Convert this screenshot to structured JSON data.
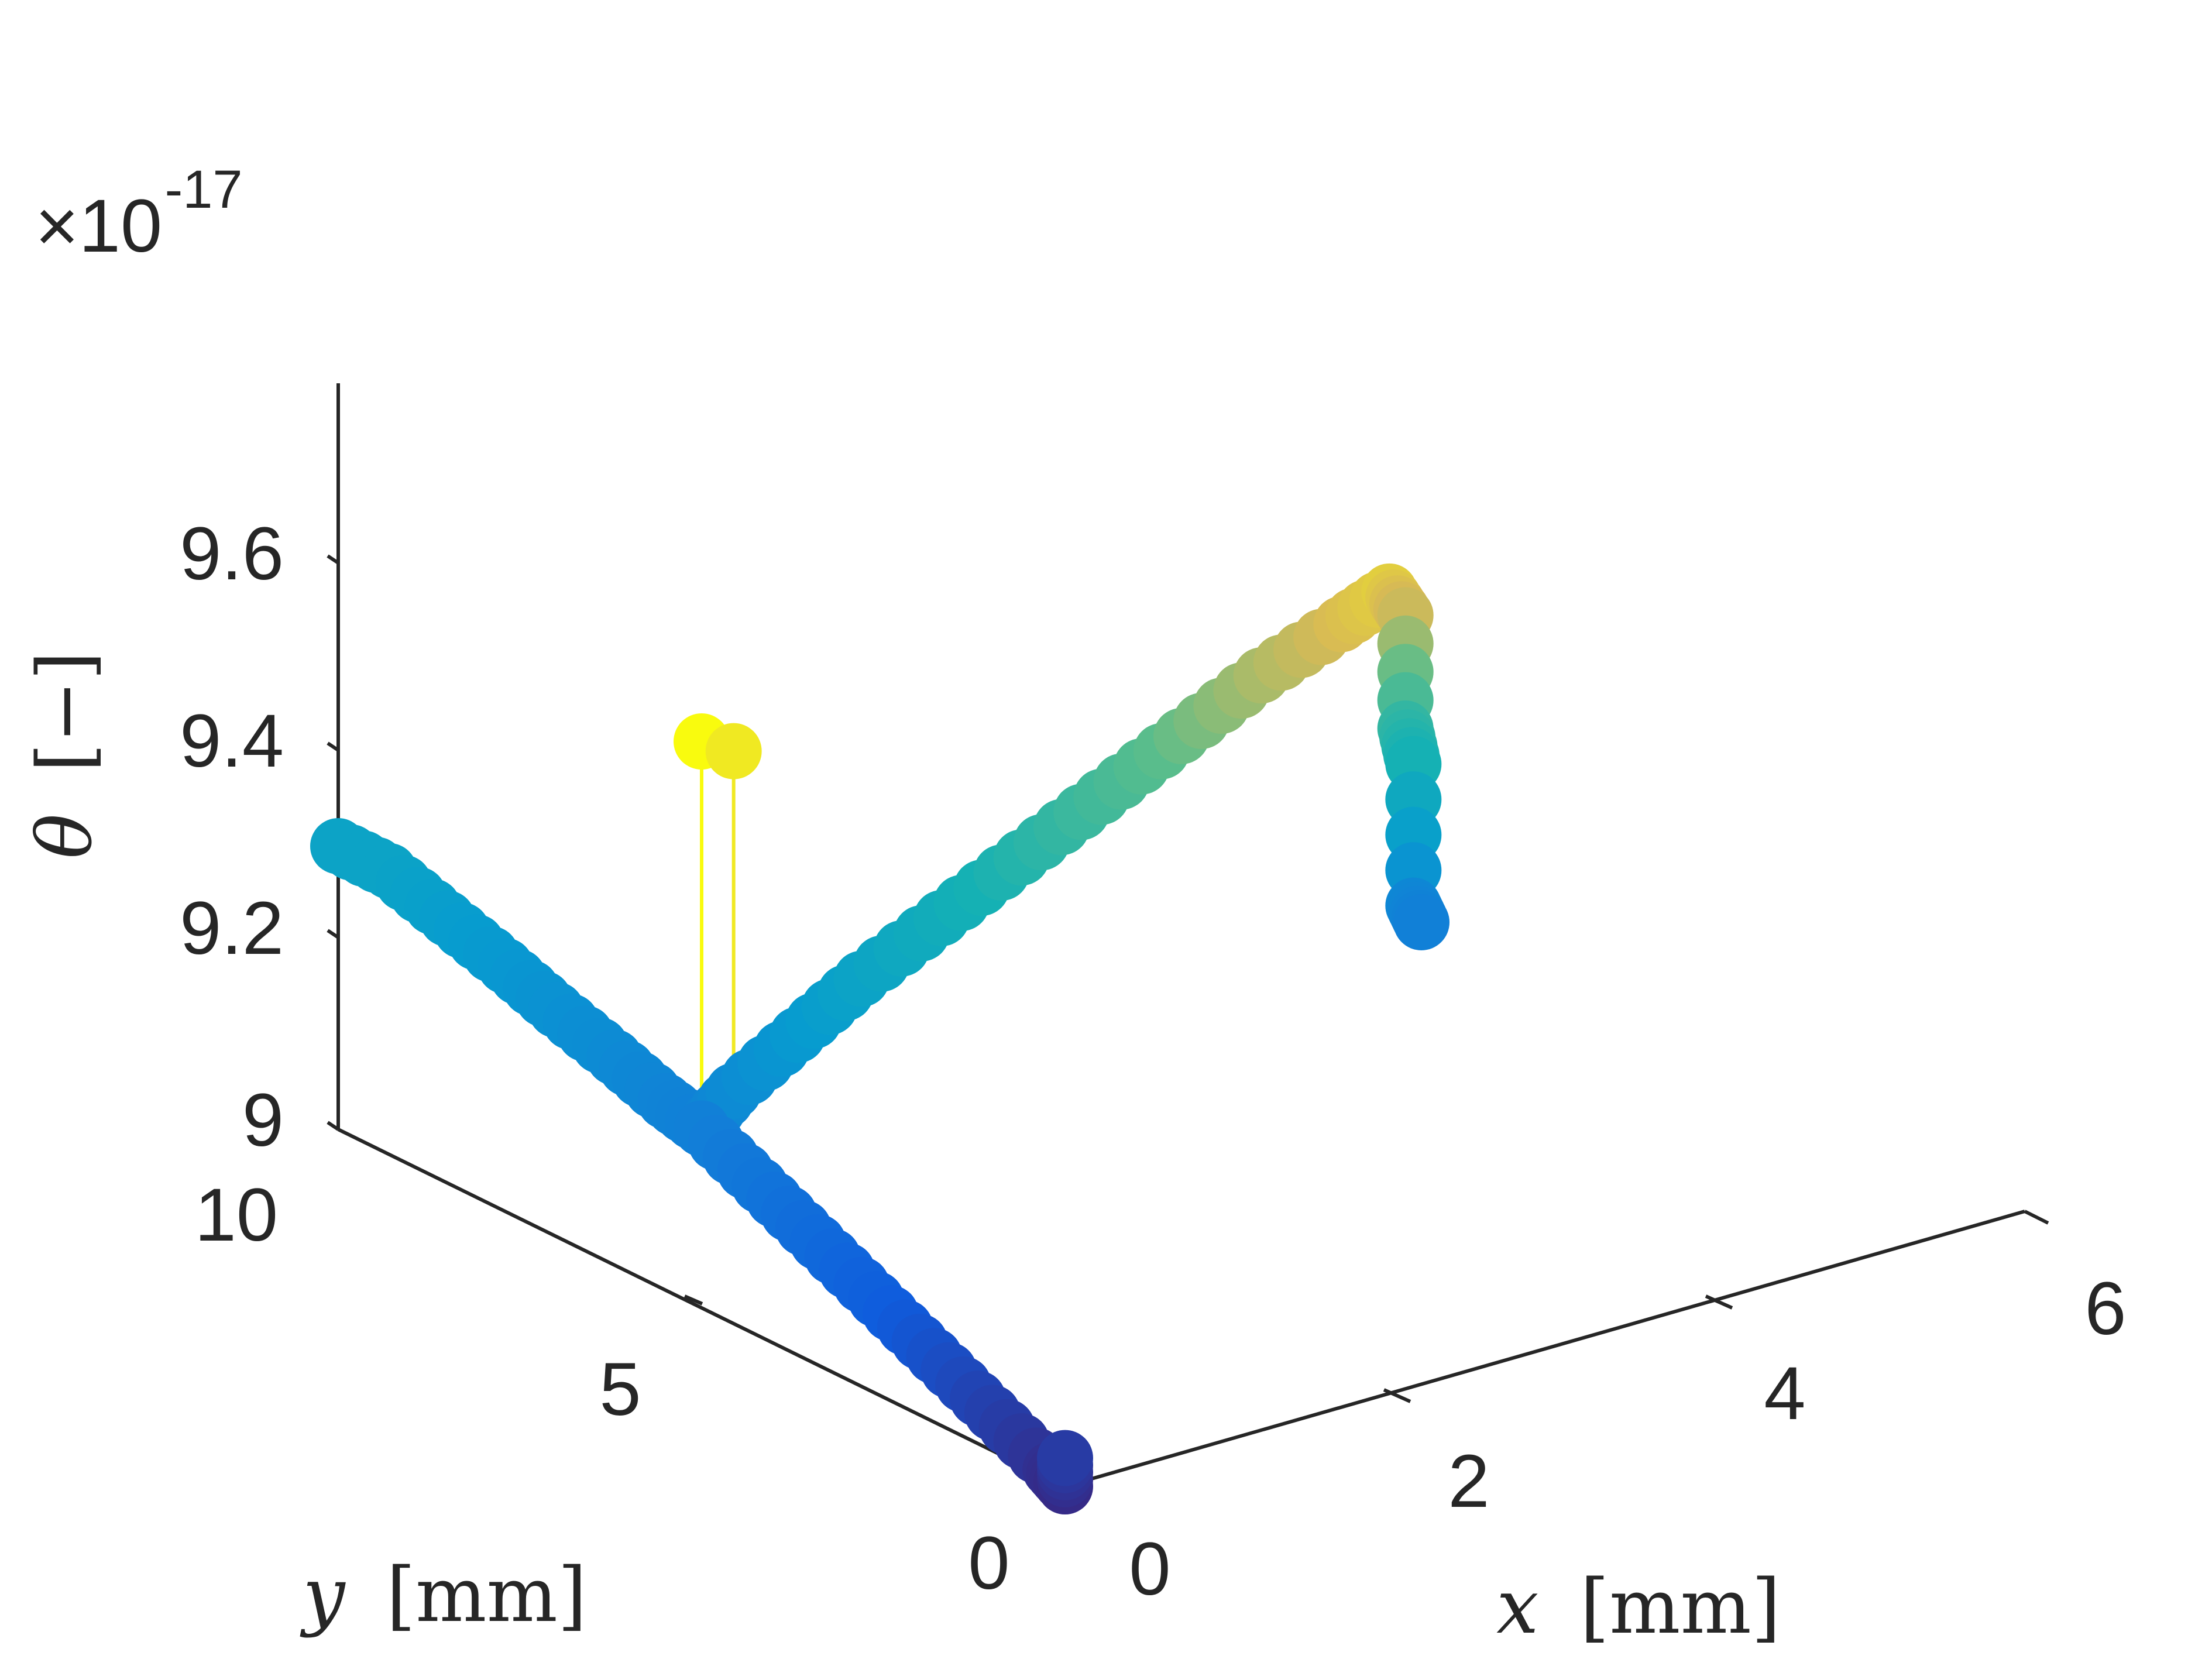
{
  "chart_data": {
    "type": "scatter",
    "view": "3d",
    "title": "",
    "multiplier": {
      "base": "×10",
      "exponent": "-17"
    },
    "xlabel": {
      "symbol": "x",
      "unit": "[mm]"
    },
    "ylabel": {
      "symbol": "y",
      "unit": "[mm]"
    },
    "zlabel": {
      "symbol": "θ",
      "unit": "[−]"
    },
    "xlim": [
      0,
      6
    ],
    "ylim": [
      0,
      10
    ],
    "zlim": [
      9.0,
      9.78
    ],
    "x_ticks": [
      "0",
      "2",
      "4",
      "6"
    ],
    "y_ticks": [
      "0",
      "5",
      "10"
    ],
    "z_ticks": [
      "9",
      "9.2",
      "9.4",
      "9.6"
    ],
    "colormap": "parula",
    "grid": false,
    "legend": "none",
    "series": [
      {
        "id": "path",
        "connected": true,
        "points": [
          {
            "x": 0.0,
            "y": 10.0,
            "z": 9.3
          },
          {
            "x": 0.0,
            "y": 9.3,
            "z": 9.3
          },
          {
            "x": 0.0,
            "y": 8.5,
            "z": 9.28
          },
          {
            "x": 0.0,
            "y": 7.7,
            "z": 9.26
          },
          {
            "x": 0.0,
            "y": 7.0,
            "z": 9.24
          },
          {
            "x": 0.0,
            "y": 6.2,
            "z": 9.22
          },
          {
            "x": 0.0,
            "y": 5.5,
            "z": 9.2
          },
          {
            "x": 0.0,
            "y": 5.0,
            "z": 9.19
          },
          {
            "x": 0.2,
            "y": 5.0,
            "z": 9.22
          },
          {
            "x": 0.6,
            "y": 5.0,
            "z": 9.26
          },
          {
            "x": 1.0,
            "y": 5.0,
            "z": 9.3
          },
          {
            "x": 1.5,
            "y": 5.0,
            "z": 9.34
          },
          {
            "x": 2.0,
            "y": 5.0,
            "z": 9.38
          },
          {
            "x": 2.5,
            "y": 5.0,
            "z": 9.42
          },
          {
            "x": 3.0,
            "y": 5.0,
            "z": 9.46
          },
          {
            "x": 3.5,
            "y": 5.0,
            "z": 9.5
          },
          {
            "x": 4.0,
            "y": 5.0,
            "z": 9.53
          },
          {
            "x": 4.3,
            "y": 5.0,
            "z": 9.55
          },
          {
            "x": 4.4,
            "y": 5.0,
            "z": 9.52
          },
          {
            "x": 4.4,
            "y": 5.0,
            "z": 9.4
          },
          {
            "x": 4.45,
            "y": 5.0,
            "z": 9.36
          },
          {
            "x": 4.45,
            "y": 5.0,
            "z": 9.21
          },
          {
            "x": 4.5,
            "y": 5.0,
            "z": 9.19
          }
        ]
      },
      {
        "id": "spikes",
        "connected": false,
        "points": [
          {
            "x": 0.0,
            "y": 5.0,
            "z": 9.6
          },
          {
            "x": 0.2,
            "y": 5.0,
            "z": 9.58
          }
        ]
      },
      {
        "id": "front-branch",
        "connected": true,
        "points": [
          {
            "x": 0.0,
            "y": 5.0,
            "z": 9.19
          },
          {
            "x": 0.0,
            "y": 4.2,
            "z": 9.16
          },
          {
            "x": 0.0,
            "y": 3.4,
            "z": 9.13
          },
          {
            "x": 0.0,
            "y": 2.6,
            "z": 9.1
          },
          {
            "x": 0.0,
            "y": 1.8,
            "z": 9.07
          },
          {
            "x": 0.0,
            "y": 1.0,
            "z": 9.04
          },
          {
            "x": 0.0,
            "y": 0.2,
            "z": 9.01
          },
          {
            "x": 0.0,
            "y": 0.0,
            "z": 9.0
          },
          {
            "x": 0.0,
            "y": 0.0,
            "z": 9.03
          }
        ]
      }
    ]
  }
}
